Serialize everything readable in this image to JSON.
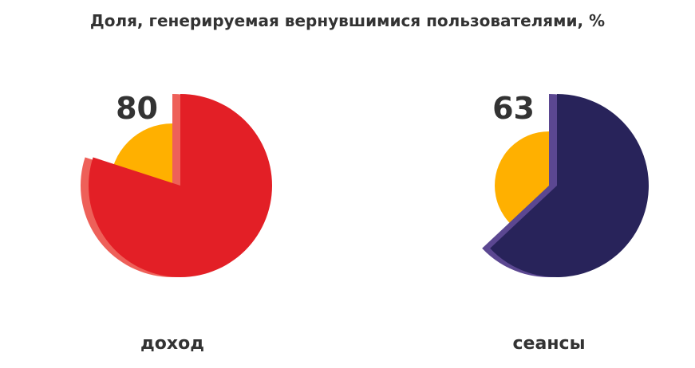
{
  "chart_data": {
    "type": "pie",
    "title": "Доля, генерируемая вернувшимися пользователями, %",
    "charts": [
      {
        "category": "доход",
        "value": 80,
        "label": "80",
        "color": "#e31f26",
        "shadow_color": "#ee6059",
        "rest_color": "#ffb000"
      },
      {
        "category": "сеансы",
        "value": 63,
        "label": "63",
        "color": "#28235a",
        "shadow_color": "#5b4791",
        "rest_color": "#ffb000"
      }
    ]
  }
}
